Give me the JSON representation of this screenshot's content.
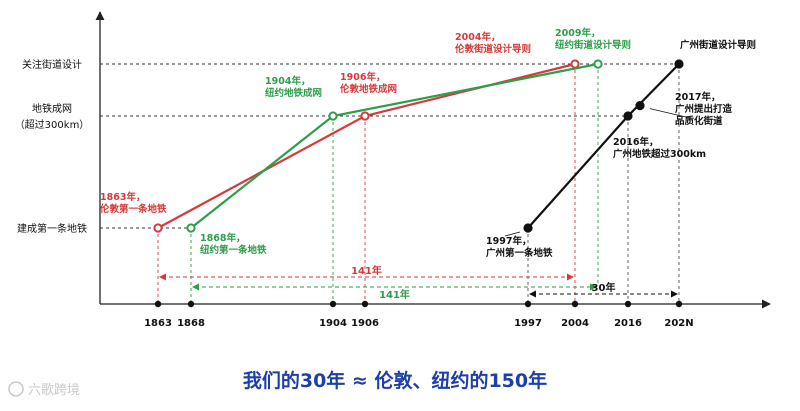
{
  "chart_data": {
    "type": "line",
    "title": "",
    "xlabel": "",
    "ylabel": "",
    "x_ticks": [
      "1863",
      "1868",
      "1904",
      "1906",
      "1997",
      "2004",
      "2016",
      "202N"
    ],
    "y_levels": [
      "建成第一条地铁",
      "地铁成网",
      "（超过300km）",
      "关注街道设计"
    ],
    "series": [
      {
        "color": "#d63a3a",
        "points": [
          {
            "x": "1863",
            "level": 0,
            "label": [
              "1863年，",
              "伦敦第一条地铁"
            ]
          },
          {
            "x": "1906",
            "level": 1,
            "label": [
              "1906年，",
              "伦敦地铁成网"
            ]
          },
          {
            "x": "2004",
            "level": 2,
            "label": [
              "2004年，",
              "伦敦街道设计导则"
            ]
          }
        ]
      },
      {
        "color": "#2e9e4a",
        "points": [
          {
            "x": "1868",
            "level": 0,
            "label": [
              "1868年，",
              "纽约第一条地铁"
            ]
          },
          {
            "x": "1904",
            "level": 1,
            "label": [
              "1904年，",
              "纽约地铁成网"
            ]
          },
          {
            "x": "2009",
            "level": 2,
            "label": [
              "2009年，",
              "纽约街道设计导则"
            ]
          }
        ]
      },
      {
        "color": "#111111",
        "points": [
          {
            "x": "1997",
            "level": 0,
            "label": [
              "1997年，",
              "广州第一条地铁"
            ]
          },
          {
            "x": "2016",
            "level": 1,
            "label": [
              "2016年，",
              "广州地铁超过300km"
            ]
          },
          {
            "x": "2017",
            "level": 1.2,
            "label": [
              "2017年，",
              "广州提出打造",
              "品质化街道"
            ]
          },
          {
            "x": "202N",
            "level": 2,
            "label": [
              "广州街道设计导则"
            ]
          }
        ]
      }
    ],
    "spans": [
      {
        "from": "1863",
        "to": "2004",
        "label": "141年",
        "color": "#d63a3a"
      },
      {
        "from": "1868",
        "to": "2009",
        "label": "141年",
        "color": "#2e9e4a"
      },
      {
        "from": "1997",
        "to": "202N",
        "label": "30年",
        "color": "#111111"
      }
    ]
  },
  "caption": "我们的30年 ≈ 伦敦、纽约的150年",
  "watermark": "六歌跨境",
  "colors": {
    "red": "#d63a3a",
    "green": "#2e9e4a",
    "black": "#111111",
    "caption": "#1f3fa8"
  }
}
